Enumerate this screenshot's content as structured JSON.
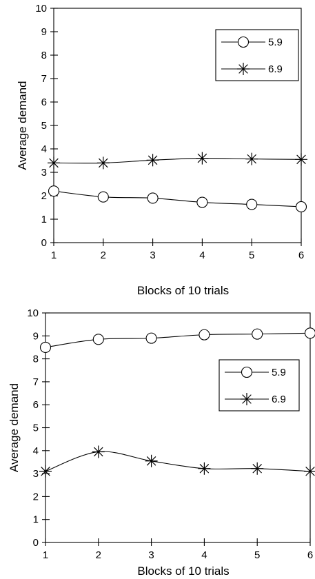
{
  "chart_data": [
    {
      "type": "line",
      "xlabel": "Blocks of 10 trials",
      "ylabel": "Average demand",
      "xlim": [
        1,
        6
      ],
      "ylim": [
        0,
        10
      ],
      "x": [
        1,
        2,
        3,
        4,
        5,
        6
      ],
      "xticks": [
        "1",
        "2",
        "3",
        "4",
        "5",
        "6"
      ],
      "yticks": [
        "0",
        "1",
        "2",
        "3",
        "4",
        "5",
        "6",
        "7",
        "8",
        "9",
        "10"
      ],
      "grid": false,
      "legend_position": "top-right",
      "series": [
        {
          "name": "5.9",
          "marker": "circle",
          "values": [
            2.2,
            1.95,
            1.9,
            1.72,
            1.63,
            1.53
          ]
        },
        {
          "name": "6.9",
          "marker": "asterisk",
          "values": [
            3.4,
            3.4,
            3.52,
            3.6,
            3.57,
            3.55
          ]
        }
      ]
    },
    {
      "type": "line",
      "xlabel": "Blocks of 10 trials",
      "ylabel": "Average demand",
      "xlim": [
        1,
        6
      ],
      "ylim": [
        0,
        10
      ],
      "x": [
        1,
        2,
        3,
        4,
        5,
        6
      ],
      "xticks": [
        "1",
        "2",
        "3",
        "4",
        "5",
        "6"
      ],
      "yticks": [
        "0",
        "1",
        "2",
        "3",
        "4",
        "5",
        "6",
        "7",
        "8",
        "9",
        "10"
      ],
      "grid": false,
      "legend_position": "middle-right",
      "series": [
        {
          "name": "5.9",
          "marker": "circle",
          "values": [
            8.5,
            8.85,
            8.9,
            9.05,
            9.08,
            9.12
          ]
        },
        {
          "name": "6.9",
          "marker": "asterisk",
          "values": [
            3.1,
            3.95,
            3.55,
            3.22,
            3.22,
            3.1
          ]
        }
      ]
    }
  ]
}
